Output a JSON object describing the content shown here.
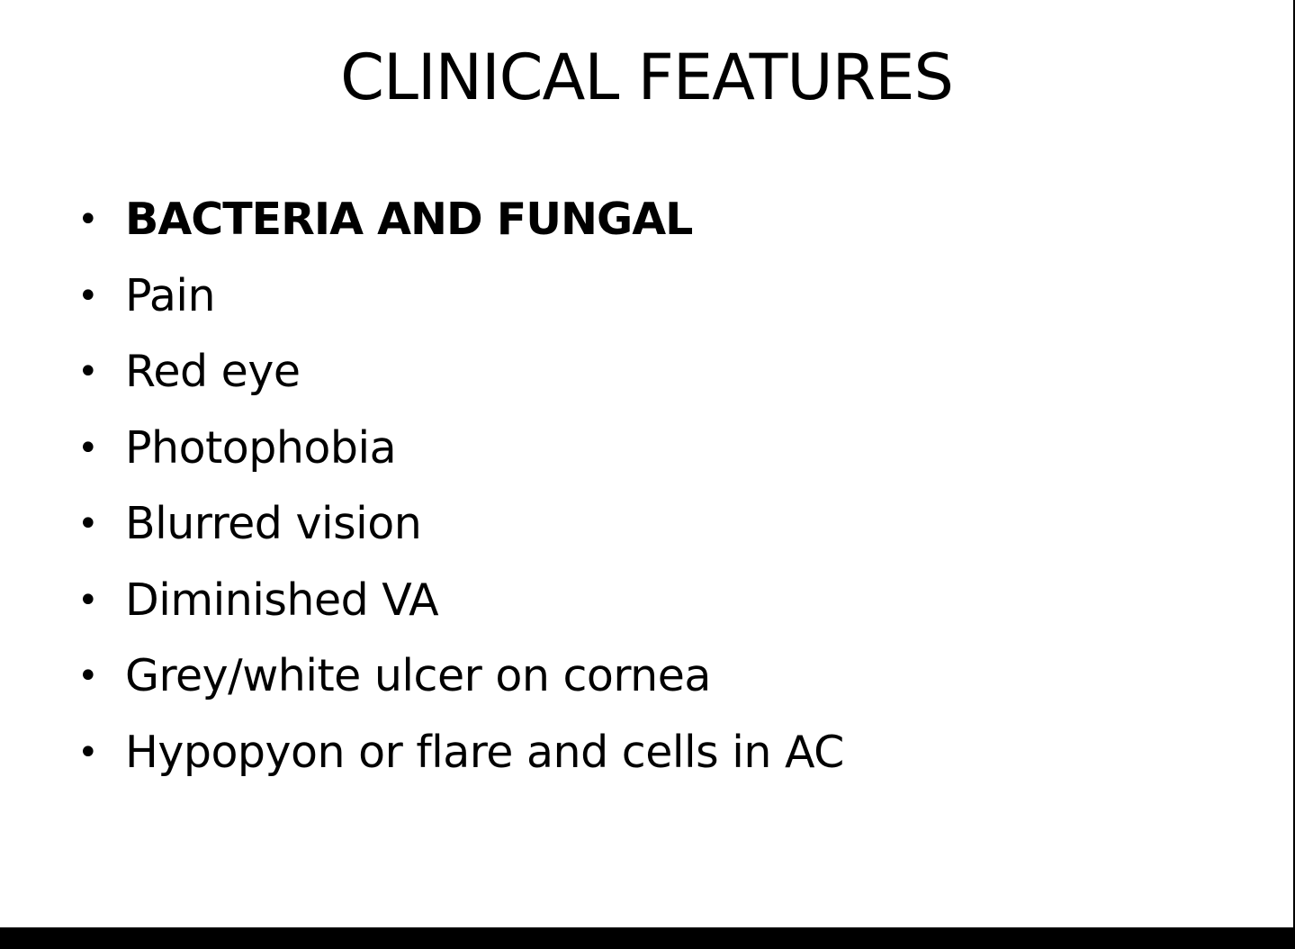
{
  "slide": {
    "title": "CLINICAL FEATURES",
    "bullet_glyph": "•",
    "bullets": [
      {
        "text": "BACTERIA AND FUNGAL",
        "bold": true
      },
      {
        "text": "Pain",
        "bold": false
      },
      {
        "text": "Red eye",
        "bold": false
      },
      {
        "text": "Photophobia",
        "bold": false
      },
      {
        "text": "Blurred vision",
        "bold": false
      },
      {
        "text": "Diminished VA",
        "bold": false
      },
      {
        "text": "Grey/white ulcer on cornea",
        "bold": false
      },
      {
        "text": "Hypopyon or flare and cells in AC",
        "bold": false
      }
    ]
  },
  "colors": {
    "background": "#ffffff",
    "text": "#000000",
    "frame": "#000000"
  }
}
